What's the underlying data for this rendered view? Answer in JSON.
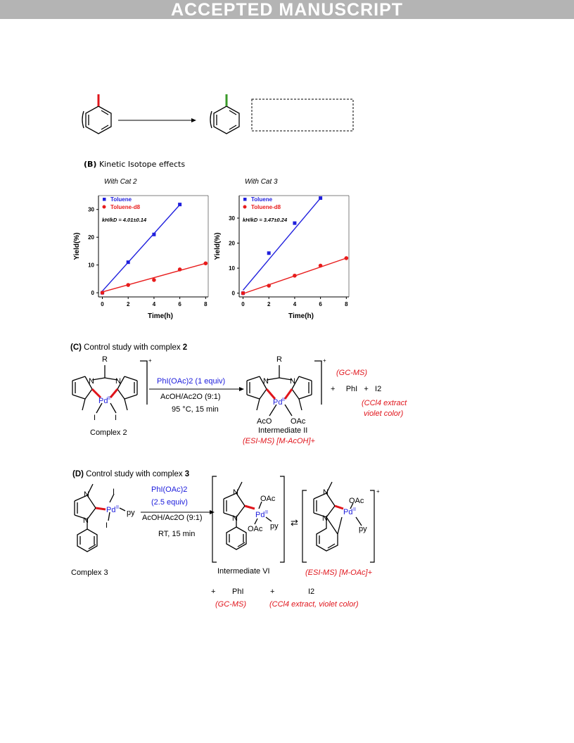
{
  "banner": "ACCEPTED MANUSCRIPT",
  "section_b": {
    "label": "(B)",
    "title": "Kinetic Isotope effects"
  },
  "chart_data": [
    {
      "type": "scatter",
      "subtitle": "With Cat 2",
      "xlabel": "Time(h)",
      "ylabel": "Yield(%)",
      "xlim": [
        -0.3,
        8.2
      ],
      "ylim": [
        -1.5,
        35
      ],
      "xticks": [
        0,
        2,
        4,
        6,
        8
      ],
      "yticks": [
        0,
        10,
        20,
        30
      ],
      "legend": "top-left",
      "annotation": "kH/kD = 4.01±0.14",
      "series": [
        {
          "name": "Toluene",
          "color": "#1f1fdd",
          "marker": "square",
          "x": [
            0,
            2,
            4,
            6
          ],
          "y": [
            0,
            11,
            21,
            31.8
          ],
          "fit": [
            [
              0,
              0.6
            ],
            [
              6,
              31.7
            ]
          ]
        },
        {
          "name": "Toluene-d8",
          "color": "#e81c1c",
          "marker": "circle",
          "x": [
            0,
            2,
            4,
            6,
            8
          ],
          "y": [
            0,
            2.8,
            4.6,
            8.4,
            10.6
          ],
          "fit": [
            [
              0,
              0.3
            ],
            [
              8,
              10.6
            ]
          ]
        }
      ]
    },
    {
      "type": "scatter",
      "subtitle": "With Cat 3",
      "xlabel": "Time(h)",
      "ylabel": "Yield(%)",
      "xlim": [
        -0.3,
        8.2
      ],
      "ylim": [
        -1.5,
        39
      ],
      "xticks": [
        0,
        2,
        4,
        6,
        8
      ],
      "yticks": [
        0,
        10,
        20,
        30
      ],
      "legend": "top-left",
      "annotation": "kH/kD = 3.47±0.24",
      "series": [
        {
          "name": "Toluene",
          "color": "#1f1fdd",
          "marker": "square",
          "x": [
            0,
            2,
            4,
            6
          ],
          "y": [
            0,
            16,
            28,
            38
          ],
          "fit": [
            [
              0,
              1.2
            ],
            [
              6,
              38
            ]
          ]
        },
        {
          "name": "Toluene-d8",
          "color": "#e81c1c",
          "marker": "circle",
          "x": [
            0,
            2,
            4,
            6,
            8
          ],
          "y": [
            0,
            3,
            7,
            11,
            14
          ],
          "fit": [
            [
              0,
              -0.2
            ],
            [
              8,
              14
            ]
          ]
        }
      ]
    }
  ],
  "section_c": {
    "label": "(C)",
    "title_prefix": "Control study with complex ",
    "title_num": "2",
    "reagent": "PhI(OAc)2 (1 equiv)",
    "solvent": "AcOH/Ac2O (9:1)",
    "conditions": "95 °C, 15 min",
    "start_label": "Complex 2",
    "product_label": "Intermediate II",
    "esi": "(ESI-MS) [M-AcOH]+",
    "gcms": "(GC-MS)",
    "byproducts": [
      "+",
      "PhI",
      "+",
      "I2"
    ],
    "ccl4_1": "(CCl4 extract",
    "ccl4_2": "violet color)",
    "atoms": {
      "R": "R",
      "N": "N",
      "Pd": "Pd",
      "pd_ox": "II",
      "I": "I",
      "AcO": "AcO",
      "OAc": "OAc",
      "charge": "+"
    }
  },
  "section_d": {
    "label": "(D)",
    "title_prefix": "Control study with complex ",
    "title_num": "3",
    "reagent_1": "PhI(OAc)2",
    "reagent_2": "(2.5 equiv)",
    "solvent": "AcOH/Ac2O (9:1)",
    "conditions": "RT, 15 min",
    "start_label": "Complex 3",
    "intermediate_label": "Intermediate VI",
    "esi": "(ESI-MS) [M-OAc]+",
    "byproducts": [
      "+",
      "PhI",
      "+",
      "I2"
    ],
    "gcms": "(GC-MS)",
    "ccl4": "(CCl4 extract, violet color)",
    "atoms": {
      "N": "N",
      "Pd": "Pd",
      "pd_ox": "II",
      "I": "I",
      "py": "py",
      "OAc": "OAc",
      "charge": "+"
    }
  }
}
